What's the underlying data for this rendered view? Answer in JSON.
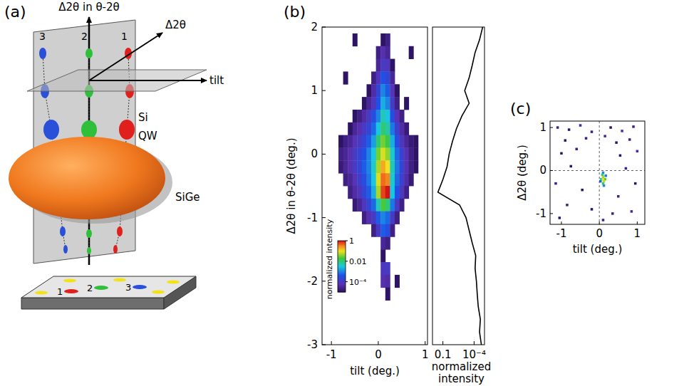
{
  "chart_data": [
    {
      "type": "diagram",
      "label": "(a)",
      "axes": [
        "Δ2θ in θ-2θ",
        "Δ2θ",
        "tilt"
      ],
      "layers": [
        "Si",
        "QW",
        "SiGe"
      ],
      "peaks": [
        "3",
        "2",
        "1"
      ],
      "surface_labels": [
        "1",
        "2",
        "3"
      ]
    },
    {
      "type": "heatmap",
      "label": "(b)",
      "xlabel": "tilt (deg.)",
      "ylabel": "Δ2θ in θ-2θ (deg.)",
      "xlim": [
        -1.2,
        1.05
      ],
      "ylim": [
        -3,
        2
      ],
      "xticks": [
        -1,
        0,
        1
      ],
      "yticks": [
        -3,
        -2,
        -1,
        0,
        1,
        2
      ],
      "log": true,
      "x": [
        -0.8,
        -0.7,
        -0.6,
        -0.5,
        -0.4,
        -0.3,
        -0.2,
        -0.1,
        0,
        0.1,
        0.2,
        0.3,
        0.4,
        0.5,
        0.6,
        0.7,
        0.8
      ],
      "y": [
        1.8,
        1.6,
        1.4,
        1.2,
        1.0,
        0.8,
        0.6,
        0.4,
        0.2,
        0.0,
        -0.2,
        -0.4,
        -0.6,
        -0.8,
        -1.0,
        -1.2,
        -1.4,
        -1.6,
        -1.8,
        -2.0,
        -2.2
      ],
      "values": [
        [
          null,
          null,
          null,
          1e-05,
          null,
          null,
          null,
          null,
          null,
          1e-05,
          2e-05,
          null,
          null,
          null,
          null,
          null,
          null
        ],
        [
          null,
          null,
          null,
          null,
          null,
          null,
          null,
          null,
          2e-05,
          5e-05,
          3e-05,
          null,
          null,
          null,
          null,
          1e-05,
          null
        ],
        [
          null,
          null,
          null,
          null,
          null,
          null,
          null,
          null,
          3e-05,
          0.0001,
          8e-05,
          1e-05,
          null,
          null,
          null,
          null,
          null
        ],
        [
          null,
          1e-05,
          null,
          null,
          null,
          null,
          null,
          2e-05,
          8e-05,
          0.0004,
          0.0002,
          3e-05,
          null,
          null,
          null,
          null,
          null
        ],
        [
          null,
          null,
          null,
          null,
          null,
          null,
          1e-05,
          4e-05,
          0.0002,
          0.001,
          0.0005,
          6e-05,
          1e-05,
          null,
          null,
          null,
          null
        ],
        [
          null,
          null,
          null,
          null,
          null,
          1e-05,
          3e-05,
          8e-05,
          0.0004,
          0.002,
          0.001,
          0.0001,
          2e-05,
          null,
          1e-05,
          null,
          null
        ],
        [
          null,
          null,
          null,
          1e-05,
          2e-05,
          4e-05,
          0.0001,
          0.0003,
          0.001,
          0.005,
          0.003,
          0.0003,
          6e-05,
          2e-05,
          null,
          null,
          null
        ],
        [
          null,
          null,
          1e-05,
          3e-05,
          5e-05,
          0.0001,
          0.0002,
          0.0006,
          0.003,
          0.01,
          0.006,
          0.0008,
          0.00015,
          4e-05,
          1.5e-05,
          null,
          null
        ],
        [
          1e-05,
          2e-05,
          3e-05,
          6e-05,
          0.0001,
          0.0002,
          0.0005,
          0.0015,
          0.01,
          0.03,
          0.015,
          0.002,
          0.0003,
          8e-05,
          3e-05,
          1.5e-05,
          1e-05
        ],
        [
          2e-05,
          3e-05,
          5e-05,
          0.0001,
          0.0002,
          0.0004,
          0.001,
          0.003,
          0.03,
          0.08,
          0.04,
          0.004,
          0.0006,
          0.00015,
          5e-05,
          2e-05,
          1e-05
        ],
        [
          1.5e-05,
          3e-05,
          5e-05,
          0.0001,
          0.0002,
          0.0005,
          0.001,
          0.004,
          0.05,
          0.2,
          0.1,
          0.005,
          0.0008,
          0.0002,
          5e-05,
          2e-05,
          1e-05
        ],
        [
          null,
          2e-05,
          3e-05,
          6e-05,
          0.00015,
          0.0003,
          0.0008,
          0.003,
          0.08,
          0.4,
          0.3,
          0.004,
          0.0006,
          0.00015,
          4e-05,
          1.5e-05,
          null
        ],
        [
          null,
          null,
          2e-05,
          4e-05,
          8e-05,
          0.0002,
          0.0005,
          0.002,
          0.05,
          0.6,
          1,
          0.003,
          0.0004,
          8e-05,
          2e-05,
          null,
          null
        ],
        [
          null,
          null,
          null,
          1.5e-05,
          3e-05,
          8e-05,
          0.0002,
          0.0006,
          0.005,
          0.02,
          0.01,
          0.0008,
          0.0001,
          2e-05,
          null,
          null,
          null
        ],
        [
          null,
          null,
          null,
          null,
          null,
          2e-05,
          5e-05,
          0.0001,
          0.0005,
          0.001,
          0.0006,
          0.0001,
          2e-05,
          null,
          null,
          null,
          null
        ],
        [
          null,
          null,
          null,
          null,
          null,
          null,
          null,
          2e-05,
          0.0001,
          0.0005,
          0.0003,
          2e-05,
          null,
          null,
          null,
          null,
          null
        ],
        [
          null,
          null,
          null,
          null,
          null,
          null,
          null,
          null,
          null,
          3e-05,
          2e-05,
          null,
          null,
          null,
          null,
          null,
          null
        ],
        [
          null,
          null,
          null,
          null,
          null,
          null,
          null,
          null,
          null,
          1e-05,
          null,
          null,
          null,
          null,
          null,
          null,
          null
        ],
        [
          null,
          null,
          null,
          null,
          null,
          null,
          null,
          null,
          null,
          8e-05,
          0.0001,
          null,
          null,
          null,
          null,
          null,
          null
        ],
        [
          null,
          null,
          null,
          null,
          null,
          null,
          null,
          null,
          null,
          5e-05,
          4e-05,
          null,
          1e-05,
          null,
          null,
          null,
          null
        ],
        [
          null,
          null,
          null,
          null,
          null,
          null,
          null,
          null,
          null,
          null,
          1e-05,
          null,
          null,
          null,
          null,
          null,
          null
        ]
      ],
      "colorbar": {
        "label": "normalized intensity",
        "range": [
          1e-05,
          1
        ],
        "ticks": [
          1,
          0.01,
          {
            "value": 0.0001,
            "label": "10⁻⁴"
          }
        ]
      }
    },
    {
      "type": "line",
      "xlabel": "normalized intensity",
      "xlim": [
        1,
        1e-05
      ],
      "ylim": [
        -3,
        2
      ],
      "log": "x",
      "tick_labels": "x",
      "xticks": [
        0.1,
        {
          "value": 0.0001,
          "label": "10⁻⁴"
        }
      ],
      "color": "#000000",
      "y": [
        -3.0,
        -2.8,
        -2.6,
        -2.4,
        -2.2,
        -2.0,
        -1.8,
        -1.6,
        -1.4,
        -1.2,
        -1.0,
        -0.8,
        -0.6,
        -0.4,
        -0.2,
        0.0,
        0.2,
        0.4,
        0.6,
        0.8,
        1.0,
        1.2,
        1.4,
        1.6,
        1.8,
        2.0
      ],
      "values": [
        2e-05,
        3e-05,
        2.5e-05,
        4e-05,
        5e-05,
        6e-05,
        8e-05,
        7e-05,
        0.00015,
        0.0003,
        0.0006,
        0.0025,
        0.3,
        0.1,
        0.04,
        0.025,
        0.012,
        0.005,
        0.0015,
        0.0003,
        0.0008,
        0.0003,
        0.00015,
        8e-05,
        3e-05,
        1.5e-05
      ]
    },
    {
      "type": "heatmap",
      "label": "(c)",
      "xlabel": "tilt (deg.)",
      "ylabel": "Δ2θ (deg.)",
      "xlim": [
        -1.3,
        1.2
      ],
      "ylim": [
        -1.25,
        1.15
      ],
      "xticks": [
        -1,
        0,
        1
      ],
      "yticks": [
        -1,
        0,
        1
      ],
      "log": true,
      "reference_lines": {
        "x": [
          0
        ],
        "y": [
          0
        ]
      },
      "color_range": [
        1e-05,
        1
      ],
      "x": [
        0.1,
        0.1,
        0.12,
        0.08,
        0.15,
        0.05,
        0.1,
        0.1,
        0.12,
        0.03,
        0.17,
        -1.1,
        -0.8,
        -0.5,
        -0.2,
        0.3,
        0.6,
        0.9,
        -0.9,
        -0.35,
        0.15,
        0.45,
        0.8,
        -1.0,
        -0.6,
        0.55,
        1.0,
        -0.75,
        0.7,
        -1.15,
        -0.45,
        0.5,
        0.95,
        -0.85,
        -0.2,
        0.35,
        0.85,
        -1.05,
        0.1
      ],
      "y": [
        -0.15,
        -0.2,
        -0.25,
        -0.1,
        -0.2,
        -0.2,
        -0.3,
        -0.05,
        -0.35,
        -0.25,
        -0.12,
        1.0,
        0.95,
        1.05,
        0.9,
        1.0,
        0.92,
        1.02,
        0.7,
        0.75,
        0.8,
        0.65,
        0.72,
        0.4,
        0.5,
        0.35,
        0.45,
        0.1,
        0.05,
        -0.3,
        -0.45,
        -0.6,
        -0.3,
        -0.8,
        -0.9,
        -1.0,
        -0.95,
        -1.1,
        -1.15
      ],
      "values": [
        0.05,
        0.1,
        0.06,
        0.01,
        0.02,
        0.005,
        0.01,
        0.001,
        0.001,
        0.0005,
        0.0008,
        2e-05,
        1e-05,
        3e-05,
        2e-05,
        1e-05,
        4e-05,
        2e-05,
        1e-05,
        2e-05,
        3e-05,
        1e-05,
        2e-05,
        1e-05,
        2e-05,
        1e-05,
        3e-05,
        1e-05,
        2e-05,
        2e-05,
        1e-05,
        2e-05,
        1e-05,
        2e-05,
        1e-05,
        2e-05,
        3e-05,
        1e-05,
        2e-05
      ]
    }
  ]
}
